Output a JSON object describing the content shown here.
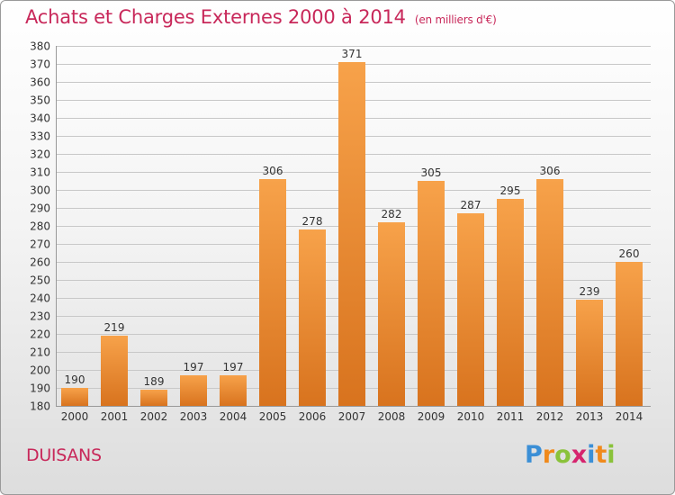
{
  "title": {
    "main": "Achats et Charges Externes 2000 à 2014",
    "unit": "(en milliers d'€)"
  },
  "commune": "DUISANS",
  "brand": {
    "name": "Proxiti",
    "letters": [
      {
        "char": "P",
        "color": "#3b8fd6"
      },
      {
        "char": "r",
        "color": "#f08a1c"
      },
      {
        "char": "o",
        "color": "#8ac23a"
      },
      {
        "char": "x",
        "color": "#d6246e"
      },
      {
        "char": "i",
        "color": "#3b8fd6"
      },
      {
        "char": "t",
        "color": "#f08a1c"
      },
      {
        "char": "i",
        "color": "#8ac23a"
      }
    ]
  },
  "colors": {
    "title": "#c8285a",
    "bar_light": "#f7a24a",
    "bar_dark": "#d8731e",
    "grid": "#c8c8c8",
    "text": "#333333"
  },
  "chart_data": {
    "type": "bar",
    "categories": [
      "2000",
      "2001",
      "2002",
      "2003",
      "2004",
      "2005",
      "2006",
      "2007",
      "2008",
      "2009",
      "2010",
      "2011",
      "2012",
      "2013",
      "2014"
    ],
    "values": [
      190,
      219,
      189,
      197,
      197,
      306,
      278,
      371,
      282,
      305,
      287,
      295,
      306,
      239,
      260
    ],
    "ylim": [
      180,
      380
    ],
    "ytick_step": 10,
    "grid": true,
    "data_labels": true,
    "xlabel": "",
    "ylabel": ""
  }
}
